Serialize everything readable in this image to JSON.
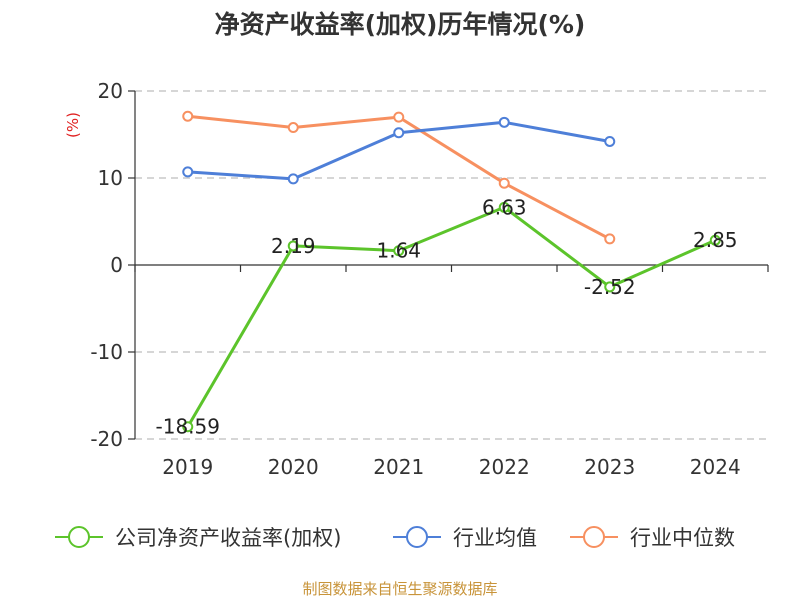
{
  "chart_data": {
    "type": "line",
    "title": "净资产收益率(加权)历年情况(%)",
    "ylabel": "(%)",
    "xlabel": "",
    "categories": [
      "2019",
      "2020",
      "2021",
      "2022",
      "2023",
      "2024"
    ],
    "ylim": [
      -20,
      20
    ],
    "yticks": [
      20,
      10,
      0,
      -10,
      -20
    ],
    "grid": true,
    "legend_position": "bottom",
    "series": [
      {
        "name": "公司净资产收益率(加权)",
        "color": "#5cc42b",
        "values": [
          -18.59,
          2.19,
          1.64,
          6.63,
          -2.52,
          2.85
        ],
        "labels": [
          "-18.59",
          "2.19",
          "1.64",
          "6.63",
          "-2.52",
          "2.85"
        ]
      },
      {
        "name": "行业均值",
        "color": "#4e7fd8",
        "values": [
          10.7,
          9.9,
          15.2,
          16.4,
          14.2,
          null
        ],
        "labels": null
      },
      {
        "name": "行业中位数",
        "color": "#f79060",
        "values": [
          17.1,
          15.8,
          17.0,
          9.4,
          3.0,
          null
        ],
        "labels": null
      }
    ]
  },
  "source": "制图数据来自恒生聚源数据库"
}
